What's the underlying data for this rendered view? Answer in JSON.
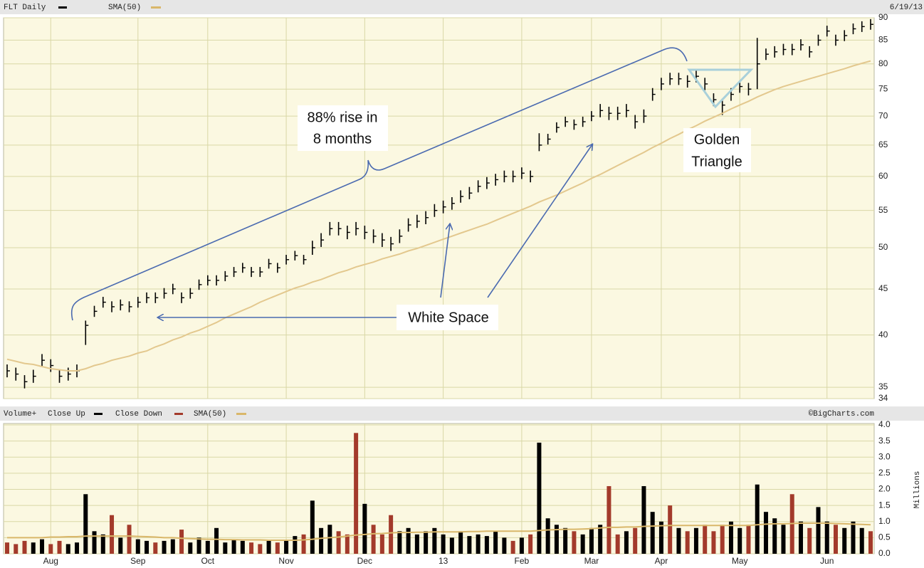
{
  "chart_data": [
    {
      "type": "ohlc",
      "subtitle": "6/19/13",
      "log": true,
      "grid": true,
      "ylim": [
        34,
        90
      ],
      "yticks": [
        34,
        35,
        40,
        45,
        50,
        55,
        60,
        65,
        70,
        75,
        80,
        85,
        90
      ],
      "series": [
        {
          "name": "FLT Daily",
          "color": "#000000",
          "values": [
            36.5,
            36.2,
            35.5,
            36,
            37.5,
            37,
            36,
            36.2,
            36.5,
            41,
            42.5,
            43.5,
            43,
            43.2,
            43,
            43.5,
            44,
            44,
            44.5,
            45,
            44,
            44.5,
            45.5,
            46,
            46,
            46.5,
            47,
            47.5,
            47,
            47,
            48,
            47.5,
            48.5,
            49,
            48.5,
            50,
            51,
            52.5,
            52.5,
            52,
            52.5,
            52,
            51.5,
            51,
            50.5,
            51.5,
            53,
            53.5,
            54,
            55,
            55.5,
            56,
            57,
            57.5,
            58.5,
            59,
            59.5,
            60,
            60,
            60.5,
            60,
            65,
            66,
            68,
            69,
            68.5,
            69,
            70,
            71,
            70.5,
            70.5,
            71,
            69,
            70,
            74,
            76,
            77,
            77,
            76.5,
            77.5,
            76,
            73,
            72,
            74,
            75.5,
            75,
            80,
            82,
            82.5,
            83,
            83,
            84,
            82.5,
            85,
            87,
            85,
            86,
            87.5,
            88,
            88.5
          ],
          "high": [
            37.1,
            36.8,
            36.1,
            36.6,
            38.1,
            37.6,
            36.6,
            36.8,
            37.1,
            41.5,
            43.1,
            44.1,
            43.6,
            43.8,
            43.6,
            44.1,
            44.6,
            44.6,
            45.1,
            45.6,
            44.6,
            45.1,
            46.1,
            46.6,
            46.6,
            47.1,
            47.6,
            48.1,
            47.6,
            47.6,
            48.6,
            48.1,
            49.1,
            49.6,
            49.1,
            50.9,
            51.9,
            53.4,
            53.4,
            52.9,
            53.4,
            52.9,
            52.4,
            51.9,
            51.4,
            52.4,
            53.9,
            54.4,
            54.9,
            55.9,
            56.4,
            56.9,
            57.9,
            58.4,
            59.4,
            59.9,
            60.4,
            60.9,
            60.9,
            61.4,
            60.9,
            67,
            66.9,
            68.9,
            69.9,
            69.4,
            69.9,
            70.9,
            72.2,
            71.7,
            71.7,
            72.2,
            70.2,
            71.2,
            75.2,
            77.2,
            78.2,
            78.2,
            77.7,
            78.7,
            77.2,
            74.2,
            73.2,
            75.2,
            76.7,
            76.2,
            85.5,
            83.2,
            83.7,
            84.2,
            84.2,
            85.2,
            83.7,
            86.2,
            88.2,
            86.2,
            87.2,
            88.7,
            89.2,
            89.7
          ],
          "low": [
            35.9,
            35.6,
            34.9,
            35.4,
            36.9,
            36.4,
            35.4,
            35.6,
            35.9,
            39,
            41.9,
            42.9,
            42.4,
            42.6,
            42.4,
            42.9,
            43.4,
            43.4,
            43.9,
            44.4,
            43.4,
            43.9,
            44.9,
            45.4,
            45.4,
            45.9,
            46.4,
            46.9,
            46.4,
            46.4,
            47.4,
            46.9,
            47.9,
            48.4,
            47.9,
            49.1,
            50.1,
            51.6,
            51.6,
            51.1,
            51.6,
            51.1,
            50.6,
            50.1,
            49.6,
            50.6,
            52.1,
            52.6,
            53.1,
            54.1,
            54.6,
            55.1,
            56.1,
            56.6,
            57.6,
            58.1,
            58.6,
            59.1,
            59.1,
            59.6,
            59.1,
            64,
            65.1,
            67.1,
            68.1,
            67.6,
            68.1,
            69.1,
            69.8,
            69.3,
            69.3,
            69.8,
            67.8,
            68.8,
            72.8,
            74.8,
            75.8,
            75.8,
            75.3,
            76.3,
            74.8,
            71.8,
            70.2,
            72.8,
            74.3,
            73.8,
            75,
            80.8,
            81.3,
            81.8,
            81.8,
            82.8,
            81.3,
            83.8,
            85.8,
            83.8,
            84.8,
            86.3,
            86.8,
            87.3
          ]
        },
        {
          "name": "SMA(50)",
          "color": "#e3c88e",
          "values": [
            37.6,
            37.4,
            37.2,
            37.1,
            36.9,
            36.7,
            36.6,
            36.5,
            36.5,
            36.7,
            37,
            37.2,
            37.5,
            37.7,
            37.9,
            38.2,
            38.4,
            38.8,
            39.1,
            39.5,
            39.8,
            40.2,
            40.5,
            40.9,
            41.3,
            41.8,
            42.2,
            42.6,
            43,
            43.5,
            43.9,
            44.3,
            44.7,
            45.1,
            45.4,
            45.8,
            46.1,
            46.5,
            46.9,
            47.2,
            47.6,
            47.9,
            48.2,
            48.6,
            48.9,
            49.2,
            49.6,
            49.9,
            50.3,
            50.7,
            51.1,
            51.5,
            51.9,
            52.3,
            52.7,
            53.1,
            53.6,
            54.1,
            54.6,
            55.1,
            55.6,
            56.2,
            56.7,
            57.2,
            57.8,
            58.4,
            59,
            59.7,
            60.3,
            61,
            61.7,
            62.4,
            63.1,
            63.8,
            64.6,
            65.3,
            66.1,
            66.8,
            67.6,
            68.3,
            69.1,
            69.8,
            70.5,
            71.3,
            72,
            72.7,
            73.5,
            74.2,
            74.9,
            75.5,
            76,
            76.5,
            77,
            77.5,
            78,
            78.5,
            79,
            79.6,
            80.1,
            80.6
          ]
        }
      ],
      "annotations": [
        [
          "88% rise in",
          "8 months"
        ],
        [
          "White Space"
        ],
        [
          "Golden",
          "Triangle"
        ]
      ]
    },
    {
      "type": "bar",
      "title": "Volume+",
      "credit": "©BigCharts.com",
      "y_label": "Millions",
      "grid": true,
      "ylim": [
        0,
        4
      ],
      "yticks": [
        {
          "value": 0,
          "label": "0.0"
        },
        0.5,
        {
          "value": 1,
          "label": "1.0"
        },
        1.5,
        {
          "value": 2,
          "label": "2.0"
        },
        2.5,
        {
          "value": 3,
          "label": "3.0"
        },
        3.5,
        {
          "value": 4,
          "label": "4.0"
        }
      ],
      "categories": [
        null,
        null,
        null,
        null,
        null,
        "Aug",
        null,
        null,
        null,
        null,
        null,
        null,
        null,
        null,
        null,
        "Sep",
        null,
        null,
        null,
        null,
        null,
        null,
        null,
        "Oct",
        null,
        null,
        null,
        null,
        null,
        null,
        null,
        null,
        "Nov",
        null,
        null,
        null,
        null,
        null,
        null,
        null,
        null,
        "Dec",
        null,
        null,
        null,
        null,
        null,
        null,
        null,
        null,
        "13",
        null,
        null,
        null,
        null,
        null,
        null,
        null,
        null,
        "Feb",
        null,
        null,
        null,
        null,
        null,
        null,
        null,
        "Mar",
        null,
        null,
        null,
        null,
        null,
        null,
        null,
        "Apr",
        null,
        null,
        null,
        null,
        null,
        null,
        null,
        null,
        "May",
        null,
        null,
        null,
        null,
        null,
        null,
        null,
        null,
        null,
        "Jun",
        null,
        null,
        null,
        null,
        null
      ],
      "series": [
        {
          "name": "Close Up",
          "color": "#000000",
          "values": [
            null,
            null,
            null,
            0.35,
            0.45,
            null,
            null,
            0.3,
            0.35,
            1.85,
            0.7,
            0.6,
            null,
            0.5,
            null,
            0.45,
            0.4,
            null,
            0.4,
            0.45,
            null,
            0.35,
            0.5,
            0.4,
            0.8,
            0.35,
            0.45,
            0.4,
            null,
            null,
            0.4,
            null,
            0.4,
            0.55,
            null,
            1.65,
            0.8,
            0.9,
            null,
            null,
            null,
            1.55,
            null,
            null,
            null,
            0.7,
            0.8,
            0.6,
            0.7,
            0.8,
            0.6,
            0.5,
            0.7,
            0.55,
            0.6,
            0.55,
            0.7,
            0.5,
            null,
            0.5,
            null,
            3.45,
            1.1,
            0.9,
            0.8,
            null,
            0.6,
            0.8,
            0.9,
            null,
            null,
            0.7,
            null,
            2.1,
            1.3,
            1.0,
            null,
            0.8,
            null,
            0.8,
            null,
            null,
            null,
            1.0,
            0.8,
            null,
            2.15,
            1.3,
            1.1,
            0.9,
            null,
            1.0,
            null,
            1.45,
            1.0,
            null,
            0.8,
            1.0,
            0.8,
            null
          ]
        },
        {
          "name": "Close Down",
          "color": "#a33a2b",
          "values": [
            0.35,
            0.3,
            0.4,
            null,
            null,
            0.3,
            0.4,
            null,
            null,
            null,
            null,
            null,
            1.2,
            null,
            0.9,
            null,
            null,
            0.35,
            null,
            null,
            0.75,
            null,
            null,
            null,
            null,
            null,
            null,
            null,
            0.35,
            0.3,
            null,
            0.35,
            null,
            null,
            0.6,
            null,
            null,
            null,
            0.7,
            0.6,
            3.75,
            null,
            0.9,
            0.6,
            1.2,
            null,
            null,
            null,
            null,
            null,
            null,
            null,
            null,
            null,
            null,
            null,
            null,
            null,
            0.4,
            null,
            0.6,
            null,
            null,
            null,
            null,
            0.7,
            null,
            null,
            null,
            2.1,
            0.6,
            null,
            0.8,
            null,
            null,
            null,
            1.5,
            null,
            0.7,
            null,
            0.9,
            0.7,
            0.9,
            null,
            null,
            0.9,
            null,
            null,
            null,
            null,
            1.85,
            null,
            0.8,
            null,
            null,
            0.9,
            null,
            null,
            null,
            0.7
          ]
        },
        {
          "name": "SMA(50)",
          "color": "#d9b76a",
          "values": [
            0.5,
            0.5,
            0.5,
            0.5,
            0.5,
            0.52,
            0.52,
            0.53,
            0.53,
            0.55,
            0.55,
            0.55,
            0.55,
            0.55,
            0.55,
            0.54,
            0.53,
            0.52,
            0.5,
            0.5,
            0.48,
            0.47,
            0.46,
            0.45,
            0.45,
            0.44,
            0.44,
            0.43,
            0.43,
            0.43,
            0.42,
            0.42,
            0.42,
            0.42,
            0.43,
            0.45,
            0.48,
            0.5,
            0.52,
            0.55,
            0.58,
            0.6,
            0.62,
            0.63,
            0.65,
            0.66,
            0.66,
            0.67,
            0.67,
            0.68,
            0.68,
            0.68,
            0.68,
            0.69,
            0.69,
            0.7,
            0.7,
            0.7,
            0.7,
            0.7,
            0.7,
            0.72,
            0.74,
            0.75,
            0.76,
            0.76,
            0.77,
            0.78,
            0.8,
            0.82,
            0.82,
            0.83,
            0.83,
            0.85,
            0.86,
            0.87,
            0.88,
            0.88,
            0.88,
            0.88,
            0.88,
            0.88,
            0.88,
            0.88,
            0.88,
            0.88,
            0.9,
            0.92,
            0.93,
            0.93,
            0.94,
            0.95,
            0.95,
            0.95,
            0.95,
            0.94,
            0.93,
            0.92,
            0.91,
            0.9
          ]
        }
      ]
    }
  ]
}
